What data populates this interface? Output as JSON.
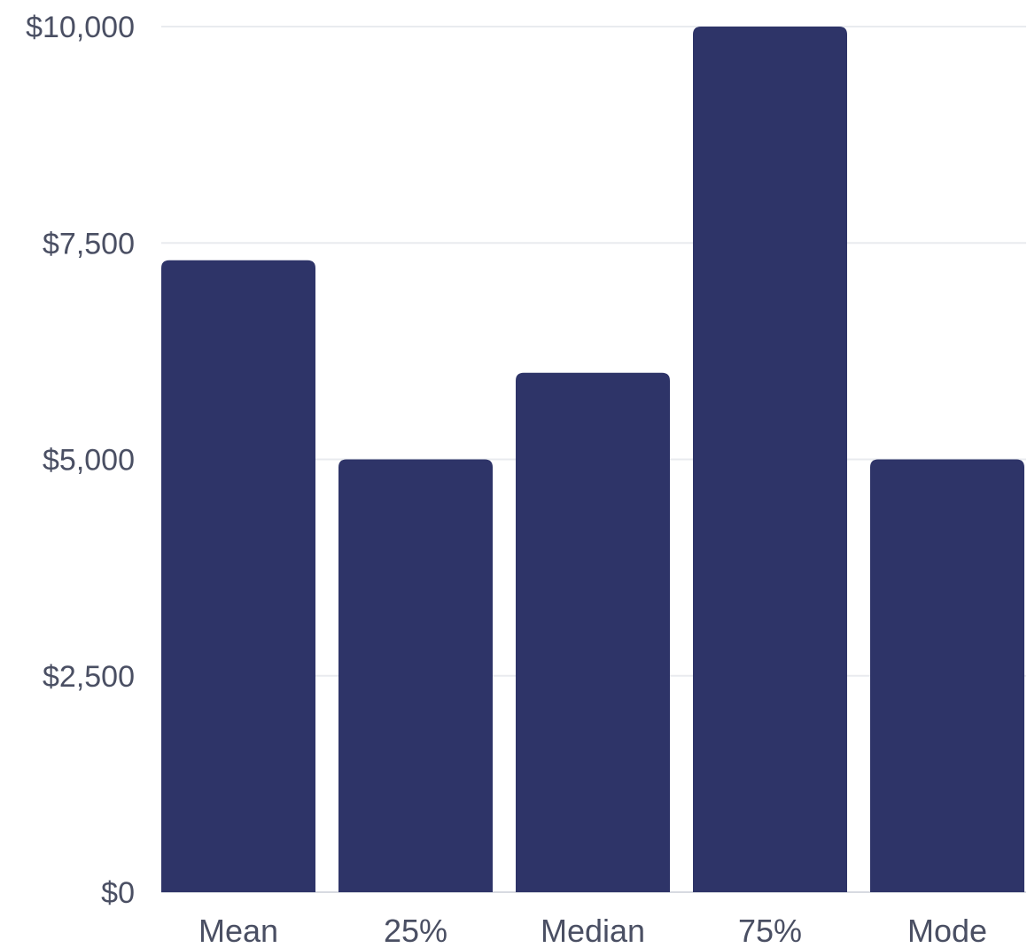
{
  "chart_data": {
    "type": "bar",
    "categories": [
      "Mean",
      "25%",
      "Median",
      "75%",
      "Mode"
    ],
    "values": [
      7300,
      5000,
      6000,
      10000,
      5000
    ],
    "yticks": [
      0,
      2500,
      5000,
      7500,
      10000
    ],
    "ytick_labels": [
      "$0",
      "$2,500",
      "$5,000",
      "$7,500",
      "$10,000"
    ],
    "ylim": [
      0,
      10000
    ],
    "title": "",
    "xlabel": "",
    "ylabel": "",
    "grid": true,
    "legend": "none",
    "bar_color": "#2e3468",
    "grid_color": "#e9ebef",
    "text_color": "#4a4f63"
  }
}
